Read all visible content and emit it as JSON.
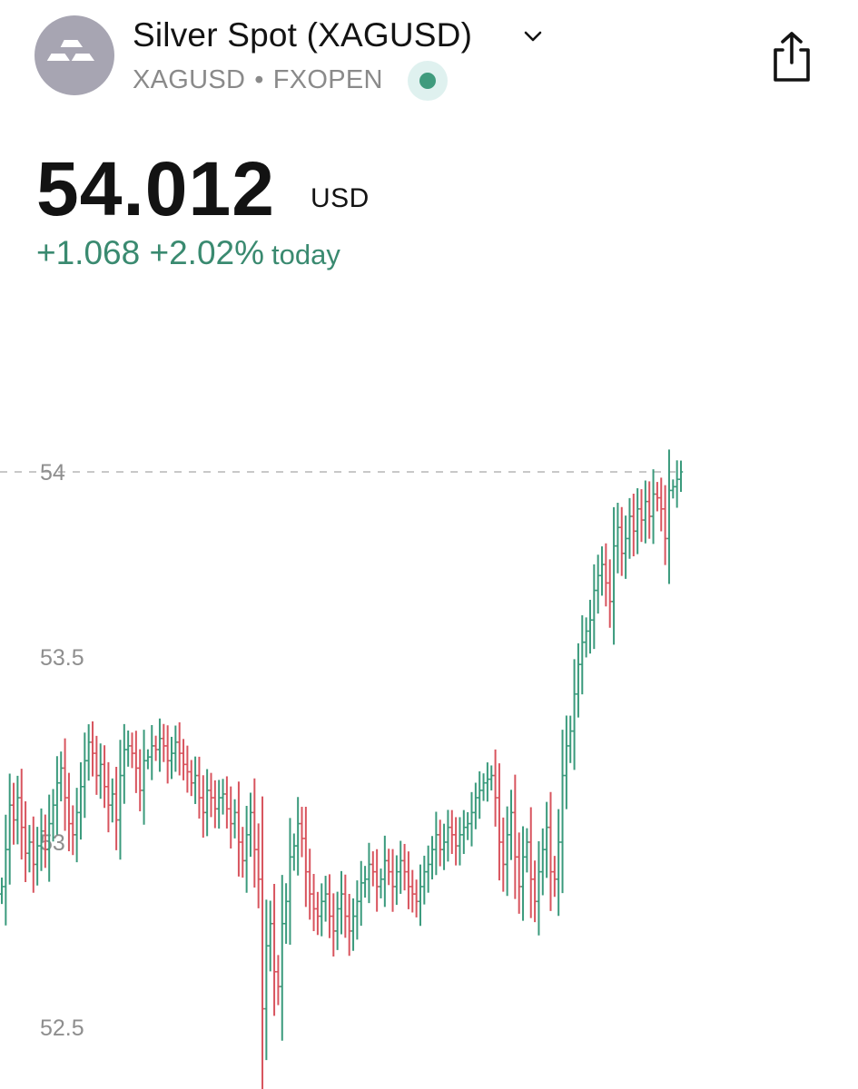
{
  "header": {
    "title": "Silver Spot (XAGUSD)",
    "symbol": "XAGUSD",
    "separator": "•",
    "exchange": "FXOPEN",
    "logo_icon": "silver-bars-icon",
    "dropdown_icon": "chevron-down-icon",
    "share_icon": "share-icon",
    "live_icon": "live-status-dot-icon"
  },
  "quote": {
    "price": "54.012",
    "currency": "USD",
    "change_abs": "+1.068",
    "change_pct": "+2.02%",
    "change_period": "today"
  },
  "colors": {
    "up": "#3a9a7c",
    "down": "#d8545e",
    "change_text": "#3a8a70",
    "live_dot": "#3f9b7d",
    "logo_bg": "#a7a5b2"
  },
  "chart_data": {
    "type": "bar",
    "style": "ohlc",
    "y_ticks": [
      "54",
      "53.5",
      "53",
      "52.5"
    ],
    "ylim": [
      52.4,
      54.02
    ],
    "last_price_line": 54.0,
    "grid": false,
    "closes": [
      52.88,
      52.98,
      53.1,
      53.06,
      53.12,
      53.04,
      52.97,
      53.0,
      52.94,
      52.99,
      53.03,
      52.98,
      53.05,
      53.1,
      53.16,
      53.2,
      53.12,
      53.05,
      53.02,
      53.08,
      53.15,
      53.22,
      53.27,
      53.24,
      53.18,
      53.21,
      53.15,
      53.1,
      53.13,
      53.06,
      53.18,
      53.25,
      53.26,
      53.24,
      53.2,
      53.14,
      53.22,
      53.23,
      53.26,
      53.25,
      53.28,
      53.26,
      53.22,
      53.24,
      53.27,
      53.24,
      53.21,
      53.19,
      53.16,
      53.18,
      53.12,
      53.08,
      53.14,
      53.12,
      53.09,
      53.12,
      53.13,
      53.09,
      53.05,
      53.08,
      53.0,
      52.95,
      53.02,
      53.08,
      52.98,
      52.9,
      52.55,
      52.72,
      52.78,
      52.65,
      52.61,
      52.78,
      52.84,
      52.96,
      52.99,
      53.05,
      53.01,
      52.92,
      52.86,
      52.82,
      52.8,
      52.84,
      52.86,
      52.8,
      52.76,
      52.82,
      52.86,
      52.8,
      52.76,
      52.8,
      52.84,
      52.89,
      52.9,
      52.94,
      52.92,
      52.88,
      52.9,
      52.95,
      52.92,
      52.88,
      52.92,
      52.95,
      52.92,
      52.88,
      52.86,
      52.84,
      52.88,
      52.92,
      52.94,
      52.98,
      53.02,
      52.98,
      53.0,
      53.04,
      53.02,
      52.99,
      53.02,
      53.04,
      53.05,
      53.08,
      53.12,
      53.14,
      53.16,
      53.17,
      53.18,
      53.12,
      53.0,
      52.94,
      53.02,
      53.08,
      52.96,
      52.88,
      52.96,
      53.0,
      52.9,
      52.84,
      52.92,
      52.98,
      53.04,
      52.92,
      52.9,
      53.0,
      53.18,
      53.26,
      53.3,
      53.4,
      53.48,
      53.54,
      53.57,
      53.6,
      53.68,
      53.72,
      53.75,
      53.7,
      53.65,
      53.8,
      53.85,
      53.78,
      53.82,
      53.88,
      53.84,
      53.9,
      53.87,
      53.92,
      53.88,
      53.94,
      53.93,
      53.9,
      53.82,
      53.95,
      53.96,
      53.98,
      54.0
    ]
  }
}
